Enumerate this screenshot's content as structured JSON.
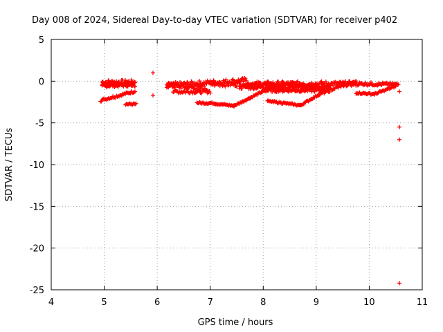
{
  "chart_data": {
    "type": "scatter",
    "title": "Day 008 of 2024, Sidereal Day-to-day VTEC variation (SDTVAR) for receiver p402",
    "xlabel": "GPS time / hours",
    "ylabel": "SDTVAR / TECUs",
    "xlim": [
      4,
      11
    ],
    "ylim": [
      -25,
      5
    ],
    "xticks": [
      "4",
      "5",
      "6",
      "7",
      "8",
      "9",
      "10",
      "11"
    ],
    "yticks": [
      "5",
      "0",
      "-5",
      "-10",
      "-15",
      "-20",
      "-25"
    ],
    "grid": true,
    "marker": "plus",
    "color": "#ff0000",
    "segments": [
      {
        "x0": 4.96,
        "x1": 5.58,
        "y0": -0.1,
        "y1": -0.1,
        "spread": 0.25
      },
      {
        "x0": 4.96,
        "x1": 5.58,
        "y0": -0.35,
        "y1": -0.35,
        "spread": 0.25
      },
      {
        "x0": 4.96,
        "x1": 5.58,
        "y0": -0.55,
        "y1": -0.45,
        "spread": 0.2
      },
      {
        "x0": 4.93,
        "x1": 5.58,
        "y0": -2.3,
        "y1": -1.2,
        "spread": 0.15
      },
      {
        "x0": 5.4,
        "x1": 5.6,
        "y0": -2.75,
        "y1": -2.75,
        "spread": 0.1
      },
      {
        "x0": 6.18,
        "x1": 7.68,
        "y0": -0.5,
        "y1": 0.1,
        "spread": 0.3
      },
      {
        "x0": 6.18,
        "x1": 6.95,
        "y0": -0.5,
        "y1": -0.9,
        "spread": 0.3
      },
      {
        "x0": 6.3,
        "x1": 7.0,
        "y0": -1.25,
        "y1": -1.25,
        "spread": 0.2
      },
      {
        "x0": 6.75,
        "x1": 7.1,
        "y0": -2.6,
        "y1": -2.65,
        "spread": 0.1
      },
      {
        "x0": 7.1,
        "x1": 7.45,
        "y0": -2.7,
        "y1": -2.95,
        "spread": 0.1
      },
      {
        "x0": 7.45,
        "x1": 7.75,
        "y0": -2.95,
        "y1": -2.0,
        "spread": 0.1
      },
      {
        "x0": 7.75,
        "x1": 8.0,
        "y0": -2.0,
        "y1": -1.2,
        "spread": 0.1
      },
      {
        "x0": 7.0,
        "x1": 9.75,
        "y0": -0.35,
        "y1": -0.3,
        "spread": 0.3
      },
      {
        "x0": 7.55,
        "x1": 9.25,
        "y0": -0.7,
        "y1": -0.8,
        "spread": 0.25
      },
      {
        "x0": 8.0,
        "x1": 9.25,
        "y0": -1.1,
        "y1": -1.1,
        "spread": 0.2
      },
      {
        "x0": 7.65,
        "x1": 9.0,
        "y0": -0.45,
        "y1": -0.5,
        "spread": 0.2
      },
      {
        "x0": 8.08,
        "x1": 8.35,
        "y0": -2.4,
        "y1": -2.6,
        "spread": 0.1
      },
      {
        "x0": 8.35,
        "x1": 8.7,
        "y0": -2.6,
        "y1": -2.9,
        "spread": 0.1
      },
      {
        "x0": 8.7,
        "x1": 9.05,
        "y0": -2.9,
        "y1": -1.6,
        "spread": 0.1
      },
      {
        "x0": 9.05,
        "x1": 9.45,
        "y0": -1.6,
        "y1": -0.6,
        "spread": 0.15
      },
      {
        "x0": 9.45,
        "x1": 9.75,
        "y0": -0.6,
        "y1": -0.1,
        "spread": 0.15
      },
      {
        "x0": 9.75,
        "x1": 10.55,
        "y0": -0.3,
        "y1": -0.4,
        "spread": 0.2
      },
      {
        "x0": 9.75,
        "x1": 10.1,
        "y0": -1.4,
        "y1": -1.55,
        "spread": 0.1
      },
      {
        "x0": 10.1,
        "x1": 10.5,
        "y0": -1.55,
        "y1": -0.6,
        "spread": 0.1
      }
    ],
    "points": [
      {
        "x": 5.92,
        "y": 1.0
      },
      {
        "x": 5.92,
        "y": -1.7
      },
      {
        "x": 10.57,
        "y": -1.25
      },
      {
        "x": 10.57,
        "y": -5.5
      },
      {
        "x": 10.57,
        "y": -7.0
      },
      {
        "x": 10.57,
        "y": -24.2
      }
    ]
  }
}
